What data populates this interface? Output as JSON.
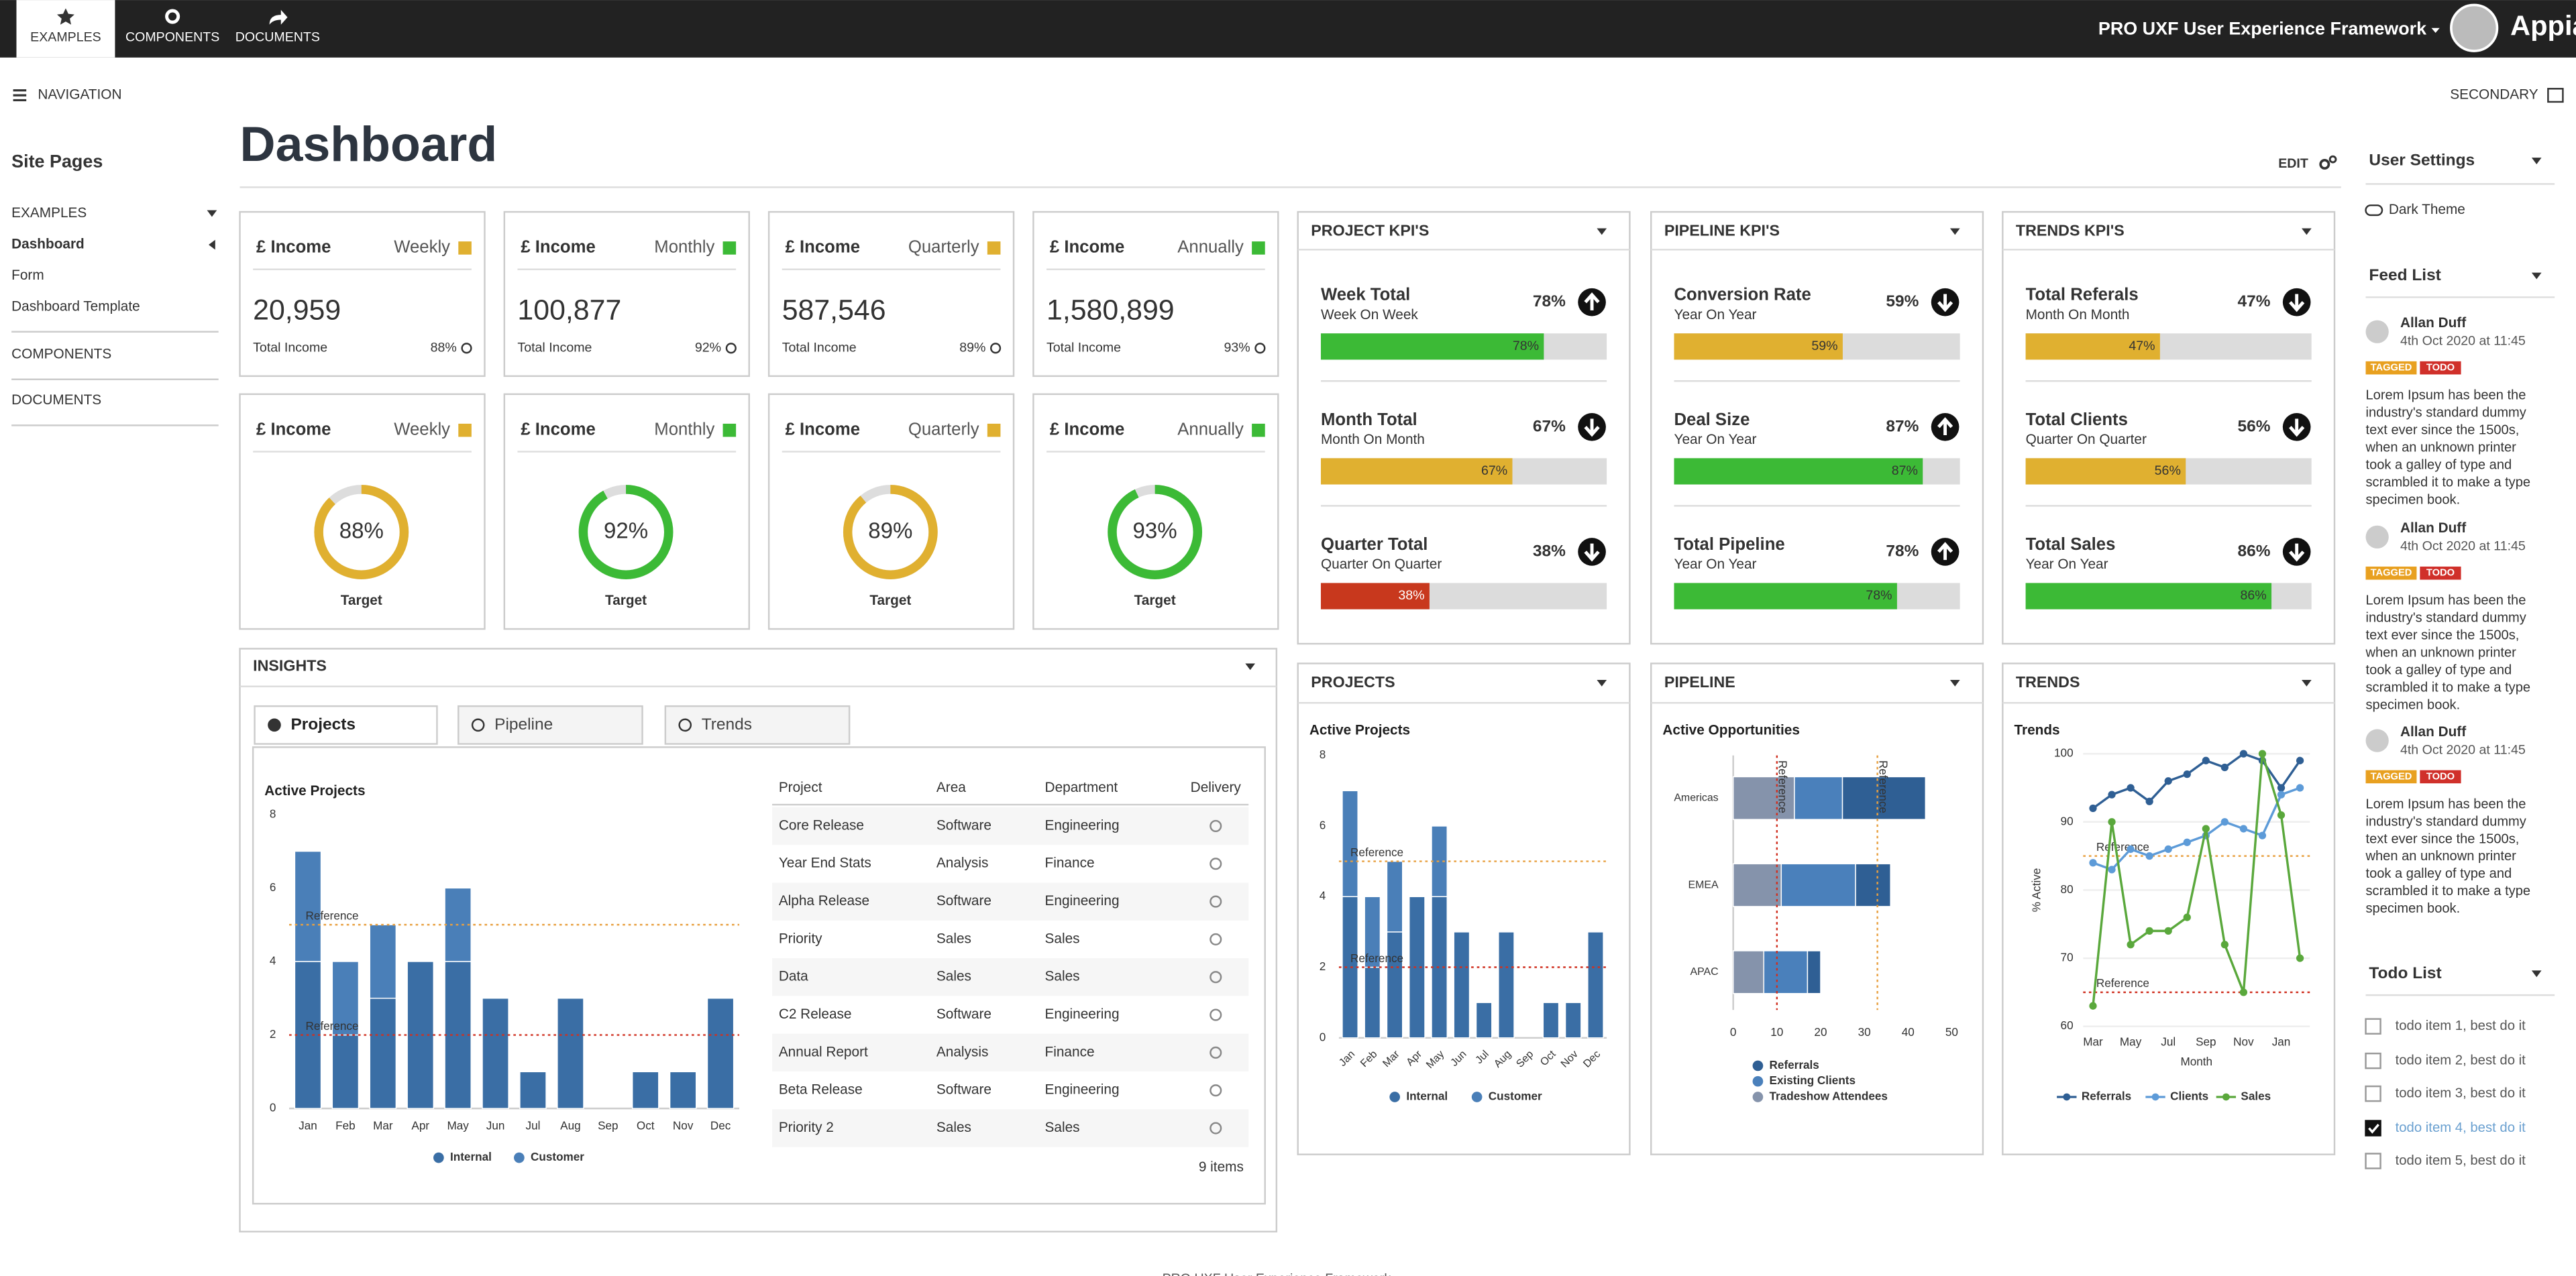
{
  "header": {
    "tabs": [
      "EXAMPLES",
      "COMPONENTS",
      "DOCUMENTS"
    ],
    "app_title": "PRO UXF User Experience Framework",
    "brand": "Appian"
  },
  "subbar": {
    "left": "NAVIGATION",
    "right": "SECONDARY"
  },
  "sidebar": {
    "title": "Site Pages",
    "items": [
      "EXAMPLES",
      "Dashboard",
      "Form",
      "Dashboard Template",
      "COMPONENTS",
      "DOCUMENTS"
    ]
  },
  "page": {
    "title": "Dashboard",
    "edit": "EDIT"
  },
  "income_tiles": [
    {
      "label": "£ Income",
      "period": "Weekly",
      "color": "#e0b030",
      "value": "20,959",
      "footer": "Total Income",
      "percent": "88%"
    },
    {
      "label": "£ Income",
      "period": "Monthly",
      "color": "#3cba36",
      "value": "100,877",
      "footer": "Total Income",
      "percent": "92%"
    },
    {
      "label": "£ Income",
      "period": "Quarterly",
      "color": "#e0b030",
      "value": "587,546",
      "footer": "Total Income",
      "percent": "89%"
    },
    {
      "label": "£ Income",
      "period": "Annually",
      "color": "#3cba36",
      "value": "1,580,899",
      "footer": "Total Income",
      "percent": "93%"
    }
  ],
  "target_tiles": [
    {
      "label": "£ Income",
      "period": "Weekly",
      "color": "#e0b030",
      "value": 88,
      "value_label": "88%",
      "footer": "Target"
    },
    {
      "label": "£ Income",
      "period": "Monthly",
      "color": "#3cba36",
      "value": 92,
      "value_label": "92%",
      "footer": "Target"
    },
    {
      "label": "£ Income",
      "period": "Quarterly",
      "color": "#e0b030",
      "value": 89,
      "value_label": "89%",
      "footer": "Target"
    },
    {
      "label": "£ Income",
      "period": "Annually",
      "color": "#3cba36",
      "value": 93,
      "value_label": "93%",
      "footer": "Target"
    }
  ],
  "kpi_panels": [
    {
      "title": "PROJECT KPI'S",
      "items": [
        {
          "name": "Week Total",
          "sub": "Week On Week",
          "value": 78,
          "value_label": "78%",
          "color": "#3cba36",
          "trend": "up"
        },
        {
          "name": "Month Total",
          "sub": "Month On Month",
          "value": 67,
          "value_label": "67%",
          "color": "#e0b030",
          "trend": "down"
        },
        {
          "name": "Quarter Total",
          "sub": "Quarter On Quarter",
          "value": 38,
          "value_label": "38%",
          "color": "#c8381d",
          "trend": "down"
        }
      ]
    },
    {
      "title": "PIPELINE KPI'S",
      "items": [
        {
          "name": "Conversion Rate",
          "sub": "Year On Year",
          "value": 59,
          "value_label": "59%",
          "color": "#e0b030",
          "trend": "down"
        },
        {
          "name": "Deal Size",
          "sub": "Year On Year",
          "value": 87,
          "value_label": "87%",
          "color": "#3cba36",
          "trend": "up"
        },
        {
          "name": "Total Pipeline",
          "sub": "Year On Year",
          "value": 78,
          "value_label": "78%",
          "color": "#3cba36",
          "trend": "up"
        }
      ]
    },
    {
      "title": "TRENDS KPI'S",
      "items": [
        {
          "name": "Total Referals",
          "sub": "Month On Month",
          "value": 47,
          "value_label": "47%",
          "color": "#e0b030",
          "trend": "down"
        },
        {
          "name": "Total Clients",
          "sub": "Quarter On Quarter",
          "value": 56,
          "value_label": "56%",
          "color": "#e0b030",
          "trend": "down"
        },
        {
          "name": "Total Sales",
          "sub": "Year On Year",
          "value": 86,
          "value_label": "86%",
          "color": "#3cba36",
          "trend": "down"
        }
      ]
    }
  ],
  "insights": {
    "title": "INSIGHTS",
    "tabs": [
      "Projects",
      "Pipeline",
      "Trends"
    ],
    "table": {
      "columns": [
        "Project",
        "Area",
        "Department",
        "Delivery"
      ],
      "rows": [
        [
          "Core Release",
          "Software",
          "Engineering"
        ],
        [
          "Year End Stats",
          "Analysis",
          "Finance"
        ],
        [
          "Alpha Release",
          "Software",
          "Engineering"
        ],
        [
          "Priority",
          "Sales",
          "Sales"
        ],
        [
          "Data",
          "Sales",
          "Sales"
        ],
        [
          "C2 Release",
          "Software",
          "Engineering"
        ],
        [
          "Annual Report",
          "Analysis",
          "Finance"
        ],
        [
          "Beta Release",
          "Software",
          "Engineering"
        ],
        [
          "Priority 2",
          "Sales",
          "Sales"
        ]
      ],
      "count": "9 items"
    }
  },
  "panels": [
    "PROJECTS",
    "PIPELINE",
    "TRENDS"
  ],
  "chart_data": [
    {
      "type": "bar",
      "stacked": true,
      "title": "Active Projects",
      "categories": [
        "Jan",
        "Feb",
        "Mar",
        "Apr",
        "May",
        "Jun",
        "Jul",
        "Aug",
        "Sep",
        "Oct",
        "Nov",
        "Dec"
      ],
      "series": [
        {
          "name": "Internal",
          "color": "#3a6ea5",
          "values": [
            4,
            2,
            3,
            4,
            4,
            3,
            1,
            3,
            0,
            1,
            1,
            3
          ]
        },
        {
          "name": "Customer",
          "color": "#4a7fb8",
          "values": [
            3,
            2,
            2,
            0,
            2,
            0,
            0,
            0,
            0,
            0,
            0,
            0
          ]
        }
      ],
      "ylim": [
        0,
        8
      ],
      "yticks": [
        0,
        2,
        4,
        6,
        8
      ],
      "references": [
        {
          "value": 5,
          "label": "Reference",
          "color": "#e8a040"
        },
        {
          "value": 2,
          "label": "Reference",
          "color": "#d03020"
        }
      ]
    },
    {
      "type": "bar",
      "stacked": true,
      "title": "Active Projects",
      "categories": [
        "Jan",
        "Feb",
        "Mar",
        "Apr",
        "May",
        "Jun",
        "Jul",
        "Aug",
        "Sep",
        "Oct",
        "Nov",
        "Dec"
      ],
      "series": [
        {
          "name": "Internal",
          "color": "#3a6ea5",
          "values": [
            4,
            2,
            3,
            4,
            4,
            3,
            1,
            3,
            0,
            1,
            1,
            3
          ]
        },
        {
          "name": "Customer",
          "color": "#4a7fb8",
          "values": [
            3,
            2,
            2,
            0,
            2,
            0,
            0,
            0,
            0,
            0,
            0,
            0
          ]
        }
      ],
      "ylim": [
        0,
        8
      ],
      "yticks": [
        0,
        2,
        4,
        6,
        8
      ],
      "references": [
        {
          "value": 5,
          "label": "Reference",
          "color": "#e8a040"
        },
        {
          "value": 2,
          "label": "Reference",
          "color": "#d03020"
        }
      ]
    },
    {
      "type": "hbar",
      "stacked": true,
      "title": "Active Opportunities",
      "categories": [
        "Americas",
        "EMEA",
        "APAC"
      ],
      "series": [
        {
          "name": "Referrals",
          "color": "#2f5f94",
          "values": [
            19,
            8,
            3
          ]
        },
        {
          "name": "Existing Clients",
          "color": "#4a80bb",
          "values": [
            11,
            17,
            10
          ]
        },
        {
          "name": "Tradeshow Attendees",
          "color": "#8593ab",
          "values": [
            14,
            11,
            7
          ]
        }
      ],
      "xlim": [
        0,
        50
      ],
      "xticks": [
        0,
        10,
        20,
        30,
        40,
        50
      ],
      "references": [
        {
          "value": 10,
          "label": "Reference",
          "color": "#d03020"
        },
        {
          "value": 33,
          "label": "Reference",
          "color": "#e8a040"
        }
      ]
    },
    {
      "type": "line",
      "title": "Trends",
      "ylabel": "% Active",
      "xlabel": "Month",
      "categories": [
        "Mar",
        null,
        "May",
        null,
        "Jul",
        null,
        "Sep",
        null,
        "Nov",
        null,
        "Jan",
        null
      ],
      "series": [
        {
          "name": "Referrals",
          "color": "#2f5f94",
          "values": [
            92,
            94,
            95,
            93,
            96,
            97,
            99,
            98,
            100,
            99,
            95,
            99
          ]
        },
        {
          "name": "Clients",
          "color": "#5d9bd8",
          "values": [
            84,
            83,
            86,
            85,
            86,
            87,
            88,
            90,
            89,
            88,
            94,
            95
          ]
        },
        {
          "name": "Sales",
          "color": "#5aa83c",
          "values": [
            63,
            90,
            72,
            74,
            74,
            76,
            89,
            72,
            65,
            100,
            91,
            70
          ]
        }
      ],
      "ylim": [
        60,
        100
      ],
      "yticks": [
        60,
        70,
        80,
        90,
        100
      ],
      "grid": true,
      "references": [
        {
          "value": 85,
          "label": "Reference",
          "color": "#e8a040"
        },
        {
          "value": 65,
          "label": "Reference",
          "color": "#d03020"
        }
      ]
    }
  ],
  "user_settings": {
    "title": "User Settings",
    "dark_theme": "Dark Theme"
  },
  "feed": {
    "title": "Feed List",
    "entries": [
      {
        "name": "Allan Duff",
        "date": "4th Oct 2020 at 11:45",
        "tags": [
          "TAGGED",
          "TODO"
        ],
        "lines": [
          "Lorem Ipsum has been the",
          "industry's standard dummy",
          "text ever since the 1500s,",
          "when an unknown printer",
          "took a galley of type and",
          "scrambled it to make a type",
          "specimen book."
        ]
      },
      {
        "name": "Allan Duff",
        "date": "4th Oct 2020 at 11:45",
        "tags": [
          "TAGGED",
          "TODO"
        ],
        "lines": [
          "Lorem Ipsum has been the",
          "industry's standard dummy",
          "text ever since the 1500s,",
          "when an unknown printer",
          "took a galley of type and",
          "scrambled it to make a type",
          "specimen book."
        ]
      },
      {
        "name": "Allan Duff",
        "date": "4th Oct 2020 at 11:45",
        "tags": [
          "TAGGED",
          "TODO"
        ],
        "lines": [
          "Lorem Ipsum has been the",
          "industry's standard dummy",
          "text ever since the 1500s,",
          "when an unknown printer",
          "took a galley of type and",
          "scrambled it to make a type",
          "specimen book."
        ]
      }
    ]
  },
  "todo": {
    "title": "Todo List",
    "items": [
      {
        "label": "todo item 1, best do it",
        "checked": false
      },
      {
        "label": "todo item 2, best do it",
        "checked": false
      },
      {
        "label": "todo item 3, best do it",
        "checked": false
      },
      {
        "label": "todo item 4, best do it",
        "checked": true
      },
      {
        "label": "todo item 5, best do it",
        "checked": false
      }
    ]
  },
  "footer": "PRO UXF User Experience Framework"
}
